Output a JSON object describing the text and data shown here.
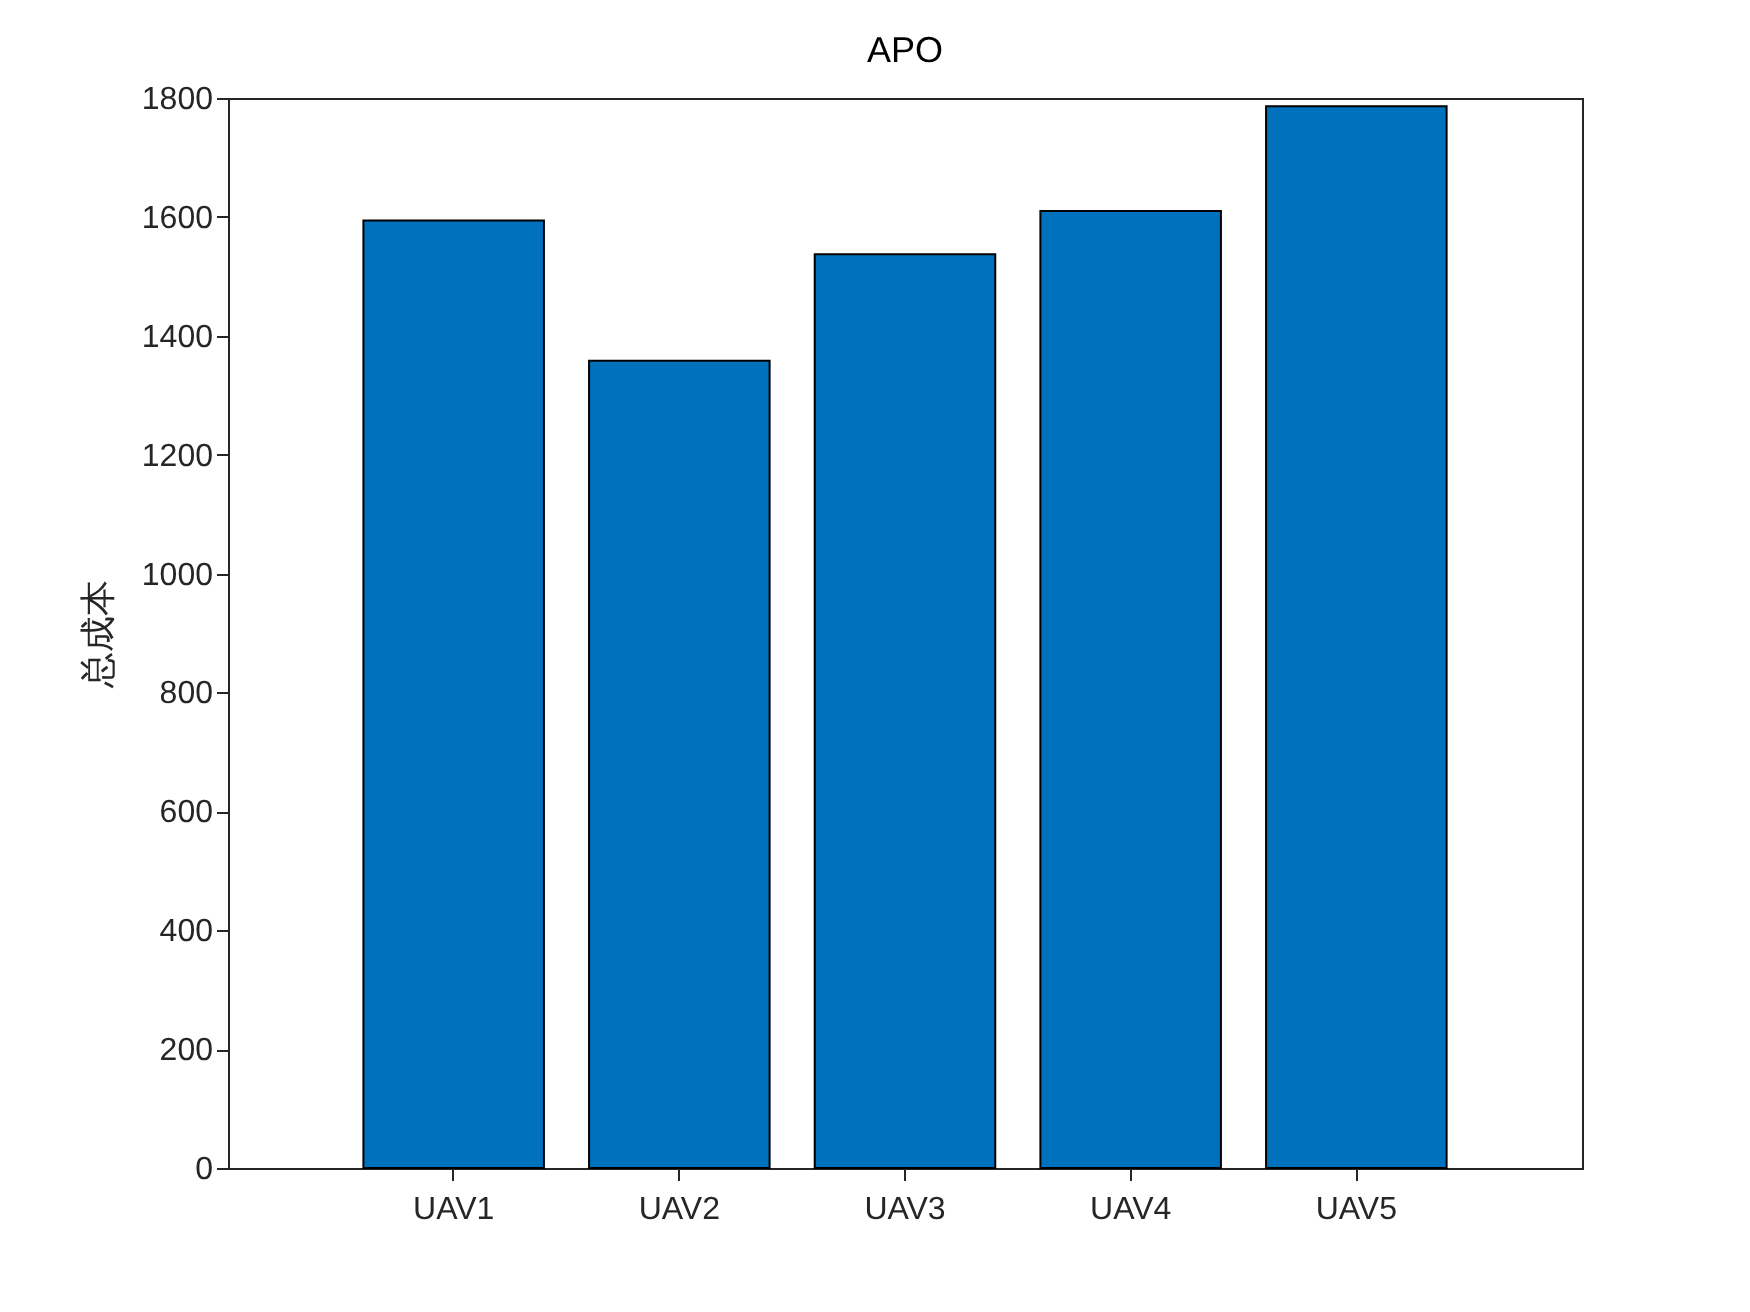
{
  "chart_data": {
    "type": "bar",
    "title": "APO",
    "ylabel": "总成本",
    "categories": [
      "UAV1",
      "UAV2",
      "UAV3",
      "UAV4",
      "UAV5"
    ],
    "values": [
      1594,
      1358,
      1537,
      1610,
      1786
    ],
    "color": "#0072bd",
    "ylim": [
      0,
      1800
    ],
    "yticks": [
      0,
      200,
      400,
      600,
      800,
      1000,
      1200,
      1400,
      1600,
      1800
    ],
    "grid": false
  }
}
